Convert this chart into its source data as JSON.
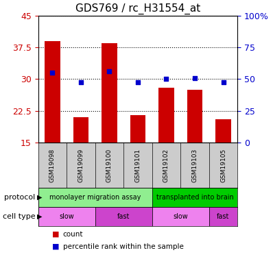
{
  "title": "GDS769 / rc_H31554_at",
  "samples": [
    "GSM19098",
    "GSM19099",
    "GSM19100",
    "GSM19101",
    "GSM19102",
    "GSM19103",
    "GSM19105"
  ],
  "bar_values": [
    39.0,
    21.0,
    38.5,
    21.5,
    28.0,
    27.5,
    20.5
  ],
  "bar_base": 15,
  "dot_values": [
    31.5,
    29.3,
    31.8,
    29.3,
    30.0,
    30.2,
    29.2
  ],
  "ylim": [
    15,
    45
  ],
  "y_left_ticks": [
    15,
    22.5,
    30,
    37.5,
    45
  ],
  "y_right_ticks": [
    0,
    25,
    50,
    75,
    100
  ],
  "bar_color": "#cc0000",
  "dot_color": "#0000cc",
  "plot_bg": "#ffffff",
  "protocol_groups": [
    {
      "label": "monolayer migration assay",
      "start": 0,
      "end": 4,
      "color": "#90ee90"
    },
    {
      "label": "transplanted into brain",
      "start": 4,
      "end": 7,
      "color": "#00cc00"
    }
  ],
  "cell_type_groups": [
    {
      "label": "slow",
      "start": 0,
      "end": 2,
      "color": "#ee82ee"
    },
    {
      "label": "fast",
      "start": 2,
      "end": 4,
      "color": "#cc44cc"
    },
    {
      "label": "slow",
      "start": 4,
      "end": 6,
      "color": "#ee82ee"
    },
    {
      "label": "fast",
      "start": 6,
      "end": 7,
      "color": "#cc44cc"
    }
  ],
  "legend_items": [
    {
      "label": "count",
      "color": "#cc0000"
    },
    {
      "label": "percentile rank within the sample",
      "color": "#0000cc"
    }
  ],
  "bar_width": 0.55
}
